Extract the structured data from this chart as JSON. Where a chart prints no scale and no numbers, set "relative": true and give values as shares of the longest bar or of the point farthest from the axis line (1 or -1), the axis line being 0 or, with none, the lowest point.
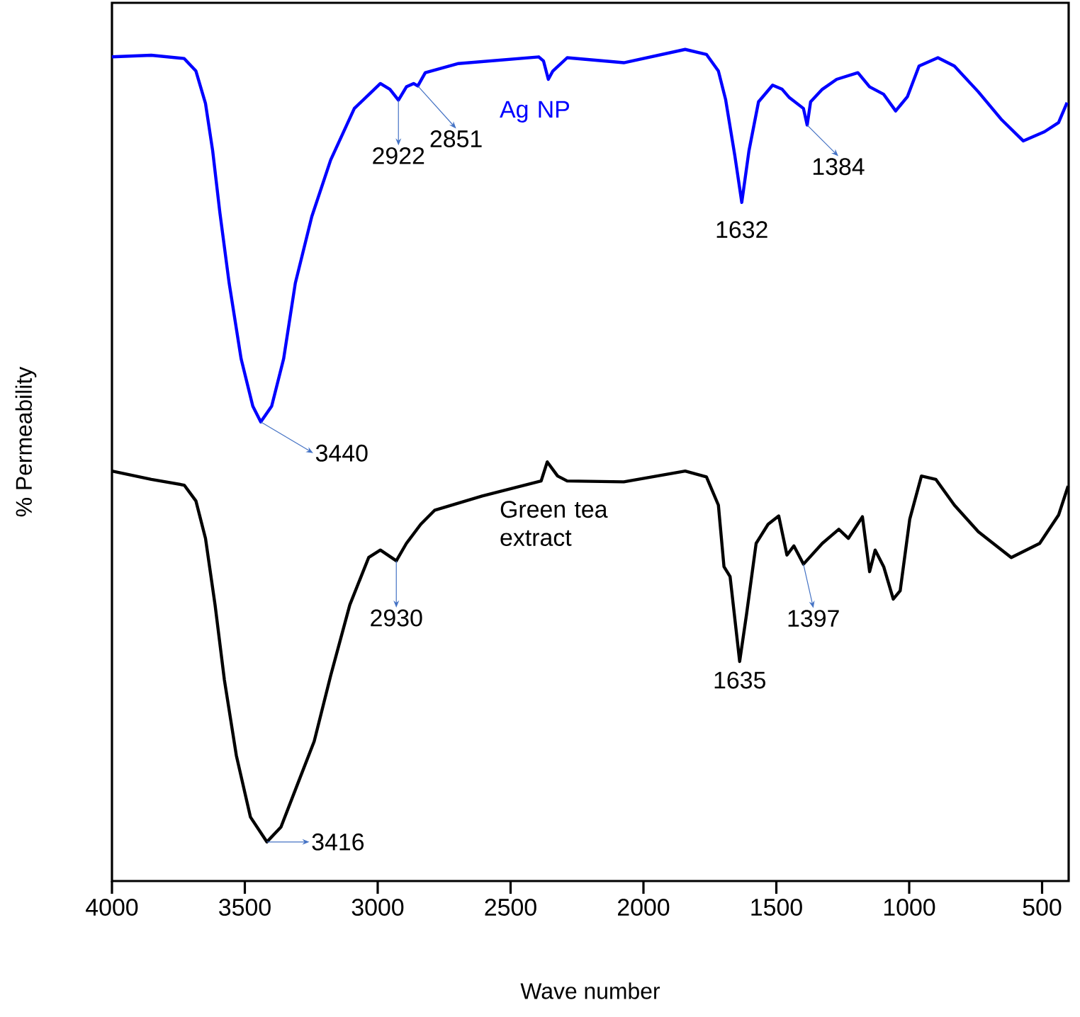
{
  "chart_data": {
    "type": "line",
    "relative": true,
    "xlabel": "Wave number",
    "ylabel": "% Permeability",
    "xlim": [
      4000,
      400
    ],
    "xticks": [
      4000,
      3500,
      3000,
      2500,
      2000,
      1500,
      1000,
      500
    ],
    "tick_labels": "x",
    "marker": "none",
    "line_style": "solid",
    "series": [
      {
        "name": "Ag NP",
        "color": "#0000ff",
        "x": [
          4000,
          3852,
          3728,
          3684,
          3648,
          3621,
          3594,
          3559,
          3514,
          3470,
          3440,
          3399,
          3354,
          3310,
          3248,
          3177,
          3088,
          2990,
          2954,
          2922,
          2892,
          2865,
          2849,
          2821,
          2696,
          2394,
          2376,
          2358,
          2341,
          2287,
          2074,
          1843,
          1763,
          1718,
          1691,
          1656,
          1630,
          1603,
          1567,
          1514,
          1478,
          1451,
          1398,
          1384,
          1371,
          1327,
          1273,
          1193,
          1149,
          1096,
          1051,
          1007,
          963,
          892,
          830,
          740,
          651,
          571,
          491,
          438,
          406
        ],
        "values": [
          0.991,
          0.993,
          0.989,
          0.974,
          0.935,
          0.878,
          0.804,
          0.719,
          0.628,
          0.571,
          0.552,
          0.571,
          0.628,
          0.719,
          0.799,
          0.867,
          0.929,
          0.959,
          0.952,
          0.939,
          0.955,
          0.959,
          0.956,
          0.972,
          0.983,
          0.991,
          0.986,
          0.964,
          0.974,
          0.99,
          0.984,
          1,
          0.994,
          0.974,
          0.94,
          0.872,
          0.816,
          0.878,
          0.937,
          0.957,
          0.952,
          0.942,
          0.929,
          0.909,
          0.937,
          0.952,
          0.964,
          0.972,
          0.955,
          0.946,
          0.926,
          0.943,
          0.98,
          0.99,
          0.98,
          0.949,
          0.915,
          0.89,
          0.901,
          0.912,
          0.936
        ]
      },
      {
        "name": "Green tea extract",
        "color": "#000000",
        "x": [
          4000,
          3852,
          3728,
          3684,
          3648,
          3612,
          3577,
          3532,
          3479,
          3417,
          3364,
          3301,
          3239,
          3177,
          3105,
          3034,
          2990,
          2930,
          2892,
          2838,
          2785,
          2607,
          2385,
          2362,
          2323,
          2287,
          2074,
          1843,
          1763,
          1718,
          1697,
          1674,
          1638,
          1612,
          1576,
          1531,
          1491,
          1460,
          1434,
          1398,
          1327,
          1265,
          1229,
          1176,
          1149,
          1128,
          1096,
          1060,
          1034,
          998,
          954,
          900,
          830,
          740,
          616,
          509,
          438,
          402
        ],
        "values": [
          0.493,
          0.483,
          0.476,
          0.457,
          0.412,
          0.332,
          0.242,
          0.151,
          0.077,
          0.047,
          0.065,
          0.117,
          0.168,
          0.247,
          0.332,
          0.389,
          0.398,
          0.385,
          0.406,
          0.429,
          0.446,
          0.463,
          0.481,
          0.504,
          0.487,
          0.481,
          0.48,
          0.493,
          0.486,
          0.452,
          0.378,
          0.366,
          0.264,
          0.321,
          0.406,
          0.429,
          0.439,
          0.392,
          0.403,
          0.381,
          0.406,
          0.423,
          0.412,
          0.438,
          0.372,
          0.398,
          0.378,
          0.339,
          0.349,
          0.435,
          0.487,
          0.483,
          0.452,
          0.42,
          0.389,
          0.406,
          0.44,
          0.475
        ]
      }
    ],
    "annotations": [
      {
        "text": "2922",
        "x": 2922,
        "y": 0.939
      },
      {
        "text": "2851",
        "x": 2849,
        "y": 0.956
      },
      {
        "text": "3440",
        "x": 3440,
        "y": 0.552
      },
      {
        "text": "1632",
        "x": 1630,
        "y": 0.816
      },
      {
        "text": "1384",
        "x": 1384,
        "y": 0.909
      },
      {
        "text": "3416",
        "x": 3417,
        "y": 0.047
      },
      {
        "text": "2930",
        "x": 2930,
        "y": 0.385
      },
      {
        "text": "1635",
        "x": 1638,
        "y": 0.264
      },
      {
        "text": "1397",
        "x": 1398,
        "y": 0.381
      }
    ]
  }
}
